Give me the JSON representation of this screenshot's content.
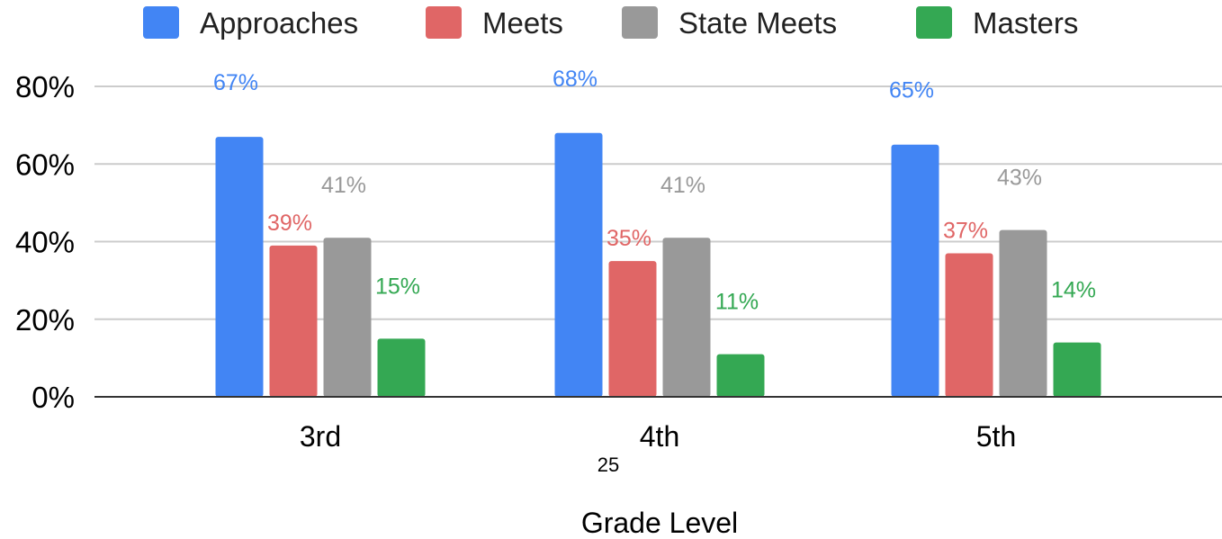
{
  "chart_data": {
    "type": "bar",
    "xlabel": "Grade Level",
    "ylabel": "",
    "ylim": [
      0,
      80
    ],
    "y_ticks": [
      "0%",
      "20%",
      "40%",
      "60%",
      "80%"
    ],
    "y_tick_values": [
      0,
      20,
      40,
      60,
      80
    ],
    "grid": true,
    "legend_position": "top",
    "categories": [
      "3rd",
      "4th",
      "5th"
    ],
    "series": [
      {
        "name": "Approaches",
        "color": "#4285F4",
        "values": [
          67,
          68,
          65
        ],
        "labels": [
          "67%",
          "68%",
          "65%"
        ]
      },
      {
        "name": "Meets",
        "color": "#E06666",
        "values": [
          39,
          35,
          37
        ],
        "labels": [
          "39%",
          "35%",
          "37%"
        ]
      },
      {
        "name": "State Meets",
        "color": "#999999",
        "values": [
          41,
          41,
          43
        ],
        "labels": [
          "41%",
          "41%",
          "43%"
        ]
      },
      {
        "name": "Masters",
        "color": "#34A853",
        "values": [
          15,
          11,
          14
        ],
        "labels": [
          "15%",
          "11%",
          "14%"
        ]
      }
    ]
  },
  "page_number": "25"
}
